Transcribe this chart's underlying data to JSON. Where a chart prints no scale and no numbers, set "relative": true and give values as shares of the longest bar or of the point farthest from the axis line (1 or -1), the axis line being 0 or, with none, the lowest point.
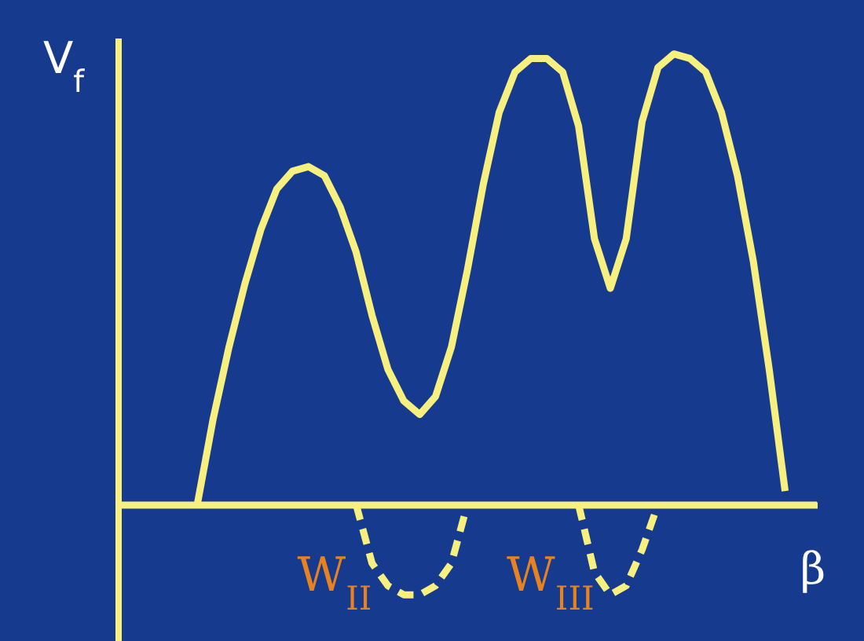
{
  "chart_data": {
    "type": "line",
    "relative": true,
    "xlabel": "β",
    "ylabel": "V$_{f}$",
    "categories": [
      null,
      null,
      null,
      null,
      null,
      null,
      null,
      null,
      null,
      null,
      null,
      null,
      null,
      null,
      null,
      null,
      null,
      null,
      null,
      null,
      null,
      null,
      null,
      null,
      null,
      null,
      null,
      null,
      null,
      null,
      null,
      null,
      null,
      null,
      null,
      null,
      null,
      null,
      null,
      null,
      null,
      null,
      null,
      null,
      null
    ],
    "series": [
      {
        "color": "#f7f07e",
        "line_style": "solid",
        "values": [
          null,
          null,
          null,
          null,
          null,
          0,
          0.19,
          0.35,
          0.49,
          0.61,
          0.7,
          0.74,
          0.75,
          0.73,
          0.66,
          0.56,
          0.42,
          0.3,
          0.23,
          0.2,
          0.24,
          0.35,
          0.52,
          0.71,
          0.87,
          0.96,
          0.99,
          0.99,
          0.96,
          0.84,
          0.59,
          0.48,
          0.59,
          0.85,
          0.97,
          1,
          0.99,
          0.96,
          0.87,
          0.73,
          0.54,
          0.3,
          0.03,
          null,
          null
        ]
      },
      {
        "color": "#f7f07e",
        "line_style": "dashed",
        "values": [
          null,
          null,
          null,
          null,
          null,
          null,
          null,
          null,
          null,
          null,
          null,
          null,
          null,
          null,
          null,
          0,
          -0.13,
          -0.18,
          -0.2,
          -0.2,
          -0.18,
          -0.13,
          0,
          null,
          null,
          null,
          null,
          null,
          null,
          null,
          null,
          null,
          null,
          null,
          null,
          null,
          null,
          null,
          null,
          null,
          null,
          null,
          null,
          null,
          null
        ]
      },
      {
        "color": "#f7f07e",
        "line_style": "dashed",
        "values": [
          null,
          null,
          null,
          null,
          null,
          null,
          null,
          null,
          null,
          null,
          null,
          null,
          null,
          null,
          null,
          null,
          null,
          null,
          null,
          null,
          null,
          null,
          null,
          null,
          null,
          null,
          null,
          null,
          null,
          0,
          -0.15,
          -0.2,
          -0.18,
          -0.1,
          0,
          null,
          null,
          null,
          null,
          null,
          null,
          null,
          null,
          null,
          null
        ]
      }
    ],
    "ref_lines": [
      {
        "axis": "y",
        "value": 0,
        "color": "#f7f07e"
      }
    ],
    "annotations": [
      "W$_{II}$",
      "W$_{III}$"
    ]
  }
}
